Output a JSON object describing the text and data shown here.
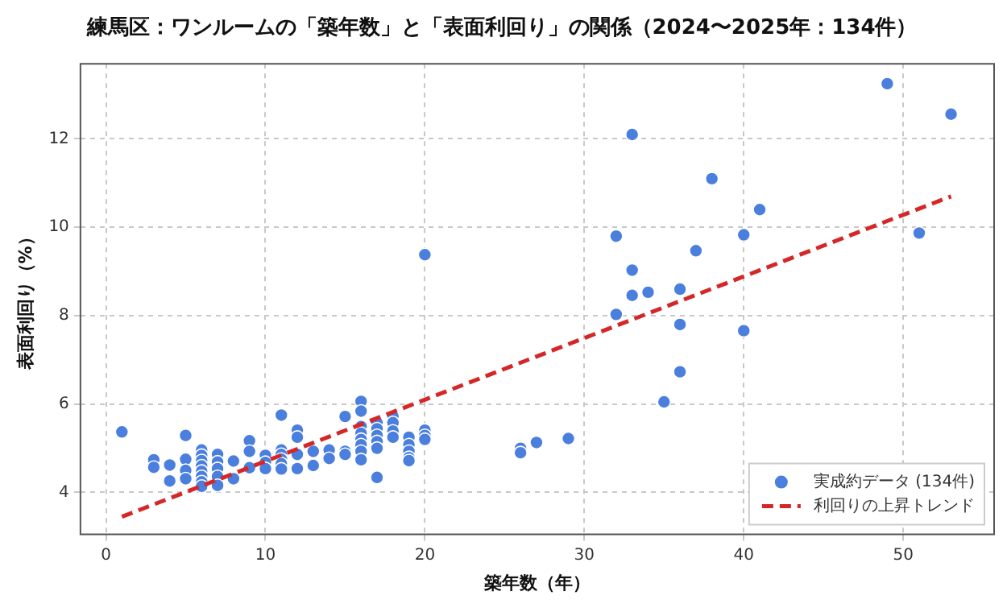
{
  "chart_data": {
    "type": "scatter",
    "title": "練馬区：ワンルームの「築年数」と「表面利回り」の関係（2024〜2025年：134件）",
    "xlabel": "築年数（年）",
    "ylabel": "表面利回り（%）",
    "xlim": [
      -1.6,
      55.7
    ],
    "ylim": [
      3.05,
      13.7
    ],
    "xticks": [
      0,
      10,
      20,
      30,
      40,
      50
    ],
    "yticks": [
      4,
      6,
      8,
      10,
      12
    ],
    "grid": true,
    "legend": "bottom right",
    "marker": "circle",
    "series": [
      {
        "name": "実成約データ (134件)",
        "color": "#4a7fde",
        "x": [
          1,
          3,
          3,
          4,
          4,
          5,
          5,
          5,
          5,
          6,
          6,
          6,
          6,
          6,
          6,
          6,
          6,
          7,
          7,
          7,
          7,
          7,
          8,
          8,
          9,
          9,
          9,
          10,
          10,
          10,
          11,
          11,
          11,
          11,
          11,
          11,
          12,
          12,
          12,
          12,
          13,
          13,
          14,
          14,
          15,
          15,
          15,
          16,
          16,
          16,
          16,
          16,
          16,
          16,
          16,
          17,
          17,
          17,
          17,
          17,
          17,
          18,
          18,
          18,
          18,
          19,
          19,
          19,
          19,
          19,
          20,
          20,
          20,
          20,
          26,
          26,
          27,
          29,
          32,
          32,
          33,
          33,
          33,
          34,
          35,
          36,
          36,
          36,
          37,
          38,
          40,
          40,
          41,
          49,
          51,
          53
        ],
        "values": [
          5.37,
          4.74,
          4.57,
          4.62,
          4.26,
          5.29,
          4.75,
          4.5,
          4.31,
          4.96,
          4.84,
          4.72,
          4.6,
          4.48,
          4.36,
          4.24,
          4.14,
          4.86,
          4.69,
          4.54,
          4.36,
          4.16,
          4.71,
          4.31,
          5.17,
          4.93,
          4.56,
          4.84,
          4.68,
          4.54,
          5.75,
          4.96,
          4.86,
          4.75,
          4.65,
          4.53,
          5.41,
          5.25,
          4.86,
          4.54,
          4.93,
          4.61,
          4.96,
          4.77,
          5.72,
          4.93,
          4.86,
          6.06,
          5.84,
          5.49,
          5.34,
          5.2,
          5.08,
          4.93,
          4.74,
          5.58,
          5.44,
          5.29,
          5.15,
          5.0,
          4.34,
          5.72,
          5.58,
          5.39,
          5.25,
          5.25,
          5.08,
          4.93,
          4.79,
          4.72,
          9.38,
          5.41,
          5.29,
          5.2,
          5.0,
          4.9,
          5.13,
          5.22,
          9.8,
          8.03,
          12.1,
          9.03,
          8.46,
          8.53,
          6.05,
          8.6,
          7.8,
          6.73,
          9.47,
          11.1,
          9.83,
          7.66,
          10.4,
          13.25,
          9.87,
          12.56
        ]
      },
      {
        "name": "利回りの上昇トレンド",
        "type": "line",
        "color": "#d62728",
        "line_style": "dashed",
        "marker": "none",
        "x": [
          1,
          53
        ],
        "values": [
          3.45,
          10.7
        ]
      }
    ]
  }
}
